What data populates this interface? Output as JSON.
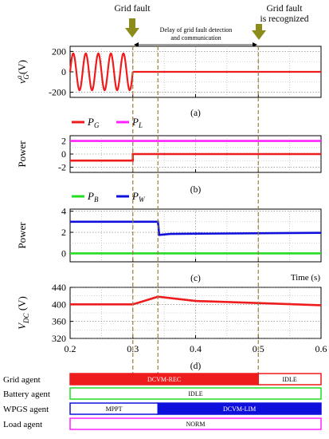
{
  "colors": {
    "red": "#ee1c1c",
    "magenta": "#ff22ff",
    "blue": "#1010dd",
    "green": "#22dd22",
    "olive": "#8c8c1a",
    "event_line": "#9c7c3c"
  },
  "annotations": {
    "fault": "Grid fault",
    "delay_line1": "Delay of grid fault detection",
    "delay_line2": "and communication",
    "recognized_line1": "Grid fault",
    "recognized_line2": "is recognized"
  },
  "x_axis": {
    "label": "Time (s)",
    "ticks": [
      "0.2",
      "0.3",
      "0.4",
      "0.5",
      "0.6"
    ]
  },
  "agents": [
    {
      "name": "Grid agent",
      "segments": [
        {
          "label": "DCVM-REC",
          "start": 0.2,
          "end": 0.5,
          "style": "filled",
          "color": "#ee1c1c"
        },
        {
          "label": "IDLE",
          "start": 0.5,
          "end": 0.6,
          "style": "outline",
          "color": "#ee1c1c"
        }
      ]
    },
    {
      "name": "Battery agent",
      "segments": [
        {
          "label": "IDLE",
          "start": 0.2,
          "end": 0.6,
          "style": "outline",
          "color": "#22dd22"
        }
      ]
    },
    {
      "name": "WPGS agent",
      "segments": [
        {
          "label": "MPPT",
          "start": 0.2,
          "end": 0.34,
          "style": "outline",
          "color": "#1010dd"
        },
        {
          "label": "DCVM-LIM",
          "start": 0.34,
          "end": 0.6,
          "style": "filled",
          "color": "#1010dd"
        }
      ]
    },
    {
      "name": "Load agent",
      "segments": [
        {
          "label": "NORM",
          "start": 0.2,
          "end": 0.6,
          "style": "outline",
          "color": "#ff22ff"
        }
      ]
    }
  ],
  "chart_data": [
    {
      "type": "line",
      "caption": "(a)",
      "ylabel": "v_G^a(V)",
      "ylabel_main": "v",
      "ylabel_sub": "G",
      "ylabel_sup": "a",
      "ylabel_unit": "(V)",
      "yticks": [
        "200",
        "0",
        "-200"
      ],
      "ylim": [
        -250,
        250
      ],
      "xlim": [
        0.2,
        0.6
      ],
      "series": [
        {
          "color": "#ee1c1c",
          "segments": [
            {
              "kind": "sine",
              "x": [
                0.2,
                0.3
              ],
              "amplitude": 180,
              "frequency_hz": 50
            },
            {
              "kind": "const",
              "x": [
                0.3,
                0.6
              ],
              "y": 0
            }
          ]
        }
      ]
    },
    {
      "type": "line",
      "caption": "(b)",
      "ylabel": "Power",
      "yticks": [
        "2",
        "0",
        "-2"
      ],
      "ylim": [
        -2.8,
        2.8
      ],
      "xlim": [
        0.2,
        0.6
      ],
      "legend": [
        {
          "sym": "P",
          "sub": "G",
          "color": "#ee1c1c"
        },
        {
          "sym": "P",
          "sub": "L",
          "color": "#ff22ff"
        }
      ],
      "series": [
        {
          "name": "P_G",
          "color": "#ee1c1c",
          "x": [
            0.2,
            0.3,
            0.3,
            0.6
          ],
          "y": [
            -1,
            -1,
            0,
            0
          ]
        },
        {
          "name": "P_L",
          "color": "#ff22ff",
          "x": [
            0.2,
            0.6
          ],
          "y": [
            2,
            2
          ]
        }
      ]
    },
    {
      "type": "line",
      "caption": "(c)",
      "ylabel": "Power",
      "yticks": [
        "4",
        "2",
        "0"
      ],
      "ylim": [
        -0.8,
        4.2
      ],
      "xlim": [
        0.2,
        0.6
      ],
      "legend": [
        {
          "sym": "P",
          "sub": "B",
          "color": "#22dd22"
        },
        {
          "sym": "P",
          "sub": "W",
          "color": "#1010dd"
        }
      ],
      "series": [
        {
          "name": "P_B",
          "color": "#22dd22",
          "x": [
            0.2,
            0.6
          ],
          "y": [
            0,
            0
          ]
        },
        {
          "name": "P_W",
          "color": "#1010dd",
          "x": [
            0.2,
            0.34,
            0.342,
            0.36,
            0.6
          ],
          "y": [
            3,
            3,
            1.75,
            1.85,
            1.95
          ]
        }
      ]
    },
    {
      "type": "line",
      "caption": "(d)",
      "ylabel": "V_DC (V)",
      "ylabel_main": "V",
      "ylabel_sub": "DC",
      "ylabel_unit": " (V)",
      "yticks": [
        "440",
        "400",
        "360",
        "320"
      ],
      "ylim": [
        320,
        440
      ],
      "xlim": [
        0.2,
        0.6
      ],
      "xlabel": "Time (s)",
      "series": [
        {
          "name": "V_DC",
          "color": "#ee1c1c",
          "x": [
            0.2,
            0.3,
            0.34,
            0.4,
            0.5,
            0.6
          ],
          "y": [
            400,
            400,
            418,
            408,
            403,
            398
          ]
        }
      ]
    }
  ]
}
